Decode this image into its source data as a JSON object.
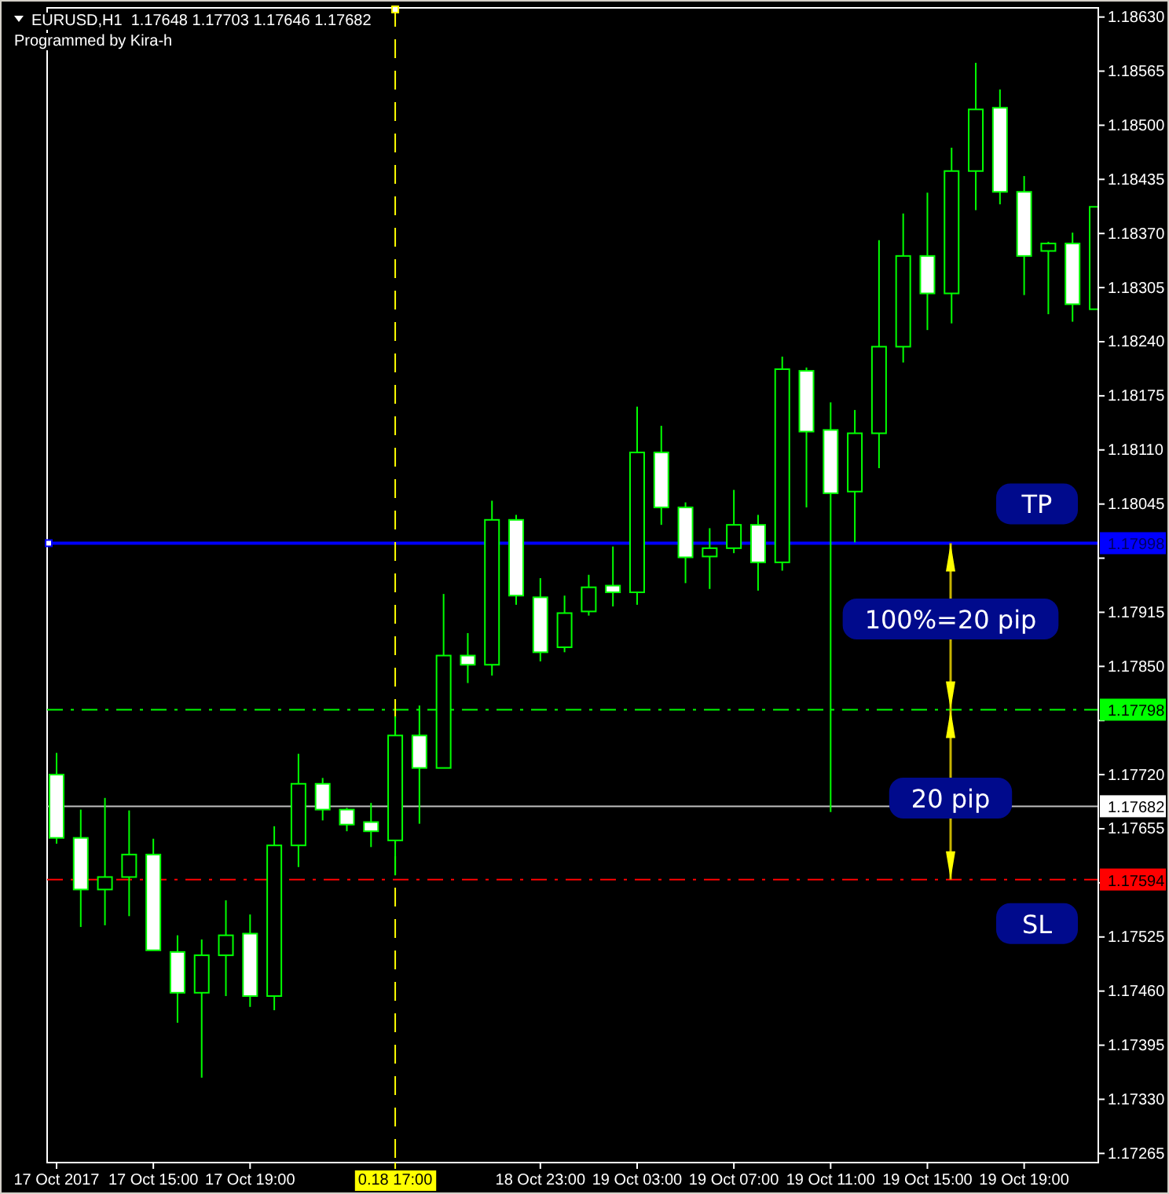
{
  "chart_data": {
    "type": "candlestick",
    "title": "EURUSD,H1  1.17648 1.17703 1.17646 1.17682",
    "subtitle": "Programmed by Kira-h",
    "categories": [
      "17 Oct 2017",
      null,
      null,
      null,
      "17 Oct 15:00",
      null,
      null,
      null,
      "17 Oct 19:00",
      null,
      null,
      null,
      null,
      null,
      "0.18 17:00",
      null,
      null,
      null,
      null,
      null,
      "18 Oct 23:00",
      null,
      null,
      null,
      "19 Oct 03:00",
      null,
      null,
      null,
      "19 Oct 07:00",
      null,
      null,
      null,
      "19 Oct 11:00",
      null,
      null,
      null,
      "19 Oct 15:00",
      null,
      null,
      null,
      "19 Oct 19:00",
      null,
      null,
      null
    ],
    "series": [
      {
        "color": "#00ff00",
        "ohlc": [
          [
            1.1772,
            1.17746,
            1.17637,
            1.17644
          ],
          [
            1.17644,
            1.17678,
            1.17537,
            1.17582
          ],
          [
            1.17582,
            1.17692,
            1.17539,
            1.17597
          ],
          [
            1.17597,
            1.17677,
            1.1755,
            1.17624
          ],
          [
            1.17624,
            1.17643,
            1.17509,
            1.17509
          ],
          [
            1.17507,
            1.17527,
            1.17422,
            1.17458
          ],
          [
            1.17458,
            1.17522,
            1.17356,
            1.17503
          ],
          [
            1.17503,
            1.17569,
            1.17454,
            1.17527
          ],
          [
            1.17529,
            1.17552,
            1.17441,
            1.17454
          ],
          [
            1.17454,
            1.17658,
            1.17437,
            1.17635
          ],
          [
            1.17635,
            1.17745,
            1.17609,
            1.17709
          ],
          [
            1.17709,
            1.17716,
            1.17665,
            1.17678
          ],
          [
            1.17678,
            1.1768,
            1.17652,
            1.1766
          ],
          [
            1.17663,
            1.17686,
            1.17633,
            1.17652
          ],
          [
            1.17641,
            1.1779,
            1.17599,
            1.17767
          ],
          [
            1.17767,
            1.17803,
            1.17661,
            1.17728
          ],
          [
            1.17728,
            1.17937,
            1.17728,
            1.17863
          ],
          [
            1.17863,
            1.1789,
            1.1783,
            1.17852
          ],
          [
            1.17852,
            1.18049,
            1.17839,
            1.18026
          ],
          [
            1.18026,
            1.18032,
            1.17924,
            1.17935
          ],
          [
            1.17933,
            1.17956,
            1.17856,
            1.17867
          ],
          [
            1.17873,
            1.17935,
            1.17867,
            1.17914
          ],
          [
            1.17916,
            1.1796,
            1.17911,
            1.17945
          ],
          [
            1.17947,
            1.17994,
            1.17922,
            1.17939
          ],
          [
            1.17939,
            1.18162,
            1.17924,
            1.18107
          ],
          [
            1.18107,
            1.18139,
            1.1802,
            1.18041
          ],
          [
            1.18041,
            1.18047,
            1.1795,
            1.17981
          ],
          [
            1.17982,
            1.18016,
            1.17943,
            1.17992
          ],
          [
            1.17992,
            1.18062,
            1.17986,
            1.1802
          ],
          [
            1.1802,
            1.18032,
            1.17941,
            1.17975
          ],
          [
            1.17975,
            1.18222,
            1.17965,
            1.18207
          ],
          [
            1.18205,
            1.18209,
            1.18041,
            1.18132
          ],
          [
            1.18134,
            1.18167,
            1.17675,
            1.18058
          ],
          [
            1.1806,
            1.18158,
            1.17999,
            1.1813
          ],
          [
            1.1813,
            1.18362,
            1.18088,
            1.18234
          ],
          [
            1.18234,
            1.18394,
            1.18215,
            1.18343
          ],
          [
            1.18343,
            1.18419,
            1.18254,
            1.18298
          ],
          [
            1.18298,
            1.18473,
            1.18262,
            1.18445
          ],
          [
            1.18445,
            1.18575,
            1.18398,
            1.18519
          ],
          [
            1.18521,
            1.18543,
            1.18405,
            1.1842
          ],
          [
            1.1842,
            1.18439,
            1.18296,
            1.18343
          ],
          [
            1.18349,
            1.1836,
            1.18273,
            1.18358
          ],
          [
            1.18358,
            1.18371,
            1.18264,
            1.18285
          ],
          [
            1.18279,
            1.18402,
            1.18279,
            1.18402
          ]
        ]
      }
    ],
    "ylim": [
      1.17254,
      1.18641
    ],
    "yticks": [
      {
        "value": 1.17265,
        "label": "1.17265"
      },
      {
        "value": 1.1733,
        "label": "1.17330"
      },
      {
        "value": 1.17395,
        "label": "1.17395"
      },
      {
        "value": 1.1746,
        "label": "1.17460"
      },
      {
        "value": 1.17525,
        "label": "1.17525"
      },
      {
        "value": 1.1759,
        "label": null
      },
      {
        "value": 1.17655,
        "label": "1.17655"
      },
      {
        "value": 1.1772,
        "label": "1.17720"
      },
      {
        "value": 1.17785,
        "label": null
      },
      {
        "value": 1.1785,
        "label": "1.17850"
      },
      {
        "value": 1.17915,
        "label": "1.17915"
      },
      {
        "value": 1.1798,
        "label": null
      },
      {
        "value": 1.18045,
        "label": "1.18045"
      },
      {
        "value": 1.1811,
        "label": "1.18110"
      },
      {
        "value": 1.18175,
        "label": "1.18175"
      },
      {
        "value": 1.1824,
        "label": "1.18240"
      },
      {
        "value": 1.18305,
        "label": "1.18305"
      },
      {
        "value": 1.1837,
        "label": "1.18370"
      },
      {
        "value": 1.18435,
        "label": "1.18435"
      },
      {
        "value": 1.185,
        "label": "1.18500"
      },
      {
        "value": 1.18565,
        "label": "1.18565"
      },
      {
        "value": 1.1863,
        "label": "1.18630"
      }
    ],
    "ref_lines": [
      {
        "axis": "y",
        "value": 1.17998,
        "label": "1.17998",
        "color": "#0000ff",
        "line_style": "solid"
      },
      {
        "axis": "y",
        "value": 1.17798,
        "label": "1.17798",
        "color": "#00ff00",
        "line_style": "dashed"
      },
      {
        "axis": "y",
        "value": 1.17682,
        "label": "1.17682",
        "color": "#c0c0c0",
        "line_style": "solid"
      },
      {
        "axis": "y",
        "value": 1.17594,
        "label": "1.17594",
        "color": "#ff0000",
        "line_style": "dashed"
      },
      {
        "axis": "x",
        "value": "0.18 17:00",
        "color": "#ffff00",
        "line_style": "dashed"
      }
    ],
    "annotations": [
      "TP",
      "100%=20 pip",
      "20 pip",
      "SL"
    ]
  }
}
